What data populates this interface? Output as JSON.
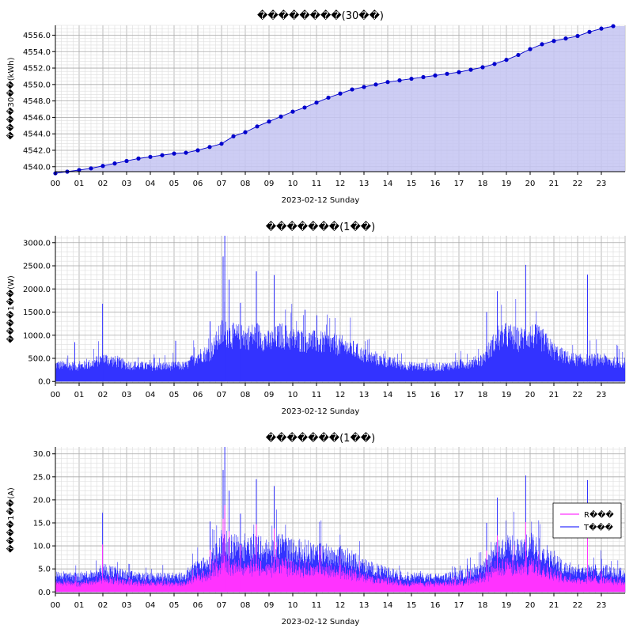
{
  "charts": [
    {
      "chart_data": {
        "type": "area",
        "title": "��������(30��)",
        "xlabel": "2023-02-12 Sunday",
        "ylabel": "����30��(kWh)",
        "ylim": [
          4539.4,
          4557.2
        ],
        "yticks": [
          4540.0,
          4542.0,
          4544.0,
          4546.0,
          4548.0,
          4550.0,
          4552.0,
          4554.0,
          4556.0
        ],
        "xlim": [
          0,
          24
        ],
        "xticks": [
          "00",
          "01",
          "02",
          "03",
          "04",
          "05",
          "06",
          "07",
          "08",
          "09",
          "10",
          "11",
          "12",
          "13",
          "14",
          "15",
          "16",
          "17",
          "18",
          "19",
          "20",
          "21",
          "22",
          "23"
        ],
        "grid": true,
        "colors": {
          "line": "#0000cc",
          "fill": "#c4c4f2",
          "marker": "#0000cc"
        },
        "x": [
          0,
          0.5,
          1,
          1.5,
          2,
          2.5,
          3,
          3.5,
          4,
          4.5,
          5,
          5.5,
          6,
          6.5,
          7,
          7.5,
          8,
          8.5,
          9,
          9.5,
          10,
          10.5,
          11,
          11.5,
          12,
          12.5,
          13,
          13.5,
          14,
          14.5,
          15,
          15.5,
          16,
          16.5,
          17,
          17.5,
          18,
          18.5,
          19,
          19.5,
          20,
          20.5,
          21,
          21.5,
          22,
          22.5,
          23,
          23.5
        ],
        "values": [
          4539.2,
          4539.4,
          4539.6,
          4539.8,
          4540.1,
          4540.4,
          4540.7,
          4541.0,
          4541.2,
          4541.4,
          4541.6,
          4541.7,
          4542.0,
          4542.4,
          4542.8,
          4543.7,
          4544.2,
          4544.9,
          4545.5,
          4546.1,
          4546.7,
          4547.2,
          4547.8,
          4548.4,
          4548.9,
          4549.4,
          4549.7,
          4550.0,
          4550.3,
          4550.5,
          4550.7,
          4550.9,
          4551.1,
          4551.3,
          4551.5,
          4551.8,
          4552.1,
          4552.5,
          4553.0,
          4553.6,
          4554.3,
          4554.9,
          4555.3,
          4555.6,
          4555.9,
          4556.4,
          4556.8,
          4557.1
        ]
      }
    },
    {
      "chart_data": {
        "type": "bar",
        "title": "�������(1��)",
        "xlabel": "2023-02-12 Sunday",
        "ylabel": "����1��(W)",
        "ylim": [
          -30,
          3150
        ],
        "yticks": [
          0.0,
          500.0,
          1000.0,
          1500.0,
          2000.0,
          2500.0,
          3000.0
        ],
        "xlim": [
          0,
          24
        ],
        "xticks": [
          "00",
          "01",
          "02",
          "03",
          "04",
          "05",
          "06",
          "07",
          "08",
          "09",
          "10",
          "11",
          "12",
          "13",
          "14",
          "15",
          "16",
          "17",
          "18",
          "19",
          "20",
          "21",
          "22",
          "23"
        ],
        "grid": true,
        "colors": {
          "bar": "#3333ff"
        },
        "profile_hours": [
          0,
          0.5,
          1,
          1.5,
          2,
          2.5,
          3,
          3.5,
          4,
          4.5,
          5,
          5.5,
          6,
          6.5,
          7,
          7.5,
          8,
          8.5,
          9,
          9.5,
          10,
          10.5,
          11,
          11.5,
          12,
          12.5,
          13,
          13.5,
          14,
          14.5,
          15,
          15.5,
          16,
          16.5,
          17,
          17.5,
          18,
          18.5,
          19,
          19.5,
          20,
          20.5,
          21,
          21.5,
          22,
          22.5,
          23,
          23.5,
          24
        ],
        "profile_values": [
          360,
          340,
          330,
          380,
          500,
          430,
          360,
          340,
          320,
          330,
          330,
          340,
          560,
          620,
          1050,
          980,
          950,
          1000,
          850,
          1000,
          900,
          880,
          850,
          820,
          780,
          700,
          560,
          480,
          420,
          360,
          330,
          320,
          310,
          330,
          370,
          400,
          480,
          850,
          1000,
          900,
          1000,
          900,
          650,
          520,
          460,
          460,
          480,
          420,
          400
        ],
        "spikes": [
          {
            "x": 7.05,
            "v": 2700
          },
          {
            "x": 7.12,
            "v": 3150
          },
          {
            "x": 7.3,
            "v": 2200
          },
          {
            "x": 8.45,
            "v": 2380
          },
          {
            "x": 9.2,
            "v": 2300
          },
          {
            "x": 7.78,
            "v": 1700
          },
          {
            "x": 1.97,
            "v": 1680
          },
          {
            "x": 18.6,
            "v": 1950
          },
          {
            "x": 19.8,
            "v": 2520
          },
          {
            "x": 22.4,
            "v": 2310
          },
          {
            "x": 0.8,
            "v": 850
          },
          {
            "x": 5.05,
            "v": 880
          },
          {
            "x": 6.5,
            "v": 1300
          },
          {
            "x": 18.15,
            "v": 1500
          },
          {
            "x": 11.0,
            "v": 1430
          },
          {
            "x": 10.5,
            "v": 1550
          }
        ]
      }
    },
    {
      "chart_data": {
        "type": "bar",
        "title": "�������(1��)",
        "xlabel": "2023-02-12 Sunday",
        "ylabel": "����1��(A)",
        "ylim": [
          -0.3,
          31.5
        ],
        "yticks": [
          0.0,
          5.0,
          10.0,
          15.0,
          20.0,
          25.0,
          30.0
        ],
        "xlim": [
          0,
          24
        ],
        "xticks": [
          "00",
          "01",
          "02",
          "03",
          "04",
          "05",
          "06",
          "07",
          "08",
          "09",
          "10",
          "11",
          "12",
          "13",
          "14",
          "15",
          "16",
          "17",
          "18",
          "19",
          "20",
          "21",
          "22",
          "23"
        ],
        "grid": true,
        "legend": "right",
        "colors": {
          "T": "#3333ff",
          "R": "#ff33ff"
        },
        "series": [
          {
            "name": "R���",
            "scale": 0.55
          },
          {
            "name": "T���",
            "scale": 1.0
          }
        ],
        "profile_hours": [
          0,
          0.5,
          1,
          1.5,
          2,
          2.5,
          3,
          3.5,
          4,
          4.5,
          5,
          5.5,
          6,
          6.5,
          7,
          7.5,
          8,
          8.5,
          9,
          9.5,
          10,
          10.5,
          11,
          11.5,
          12,
          12.5,
          13,
          13.5,
          14,
          14.5,
          15,
          15.5,
          16,
          16.5,
          17,
          17.5,
          18,
          18.5,
          19,
          19.5,
          20,
          20.5,
          21,
          21.5,
          22,
          22.5,
          23,
          23.5,
          24
        ],
        "profile_values": [
          3.6,
          3.4,
          3.3,
          3.8,
          5.0,
          4.3,
          3.6,
          3.4,
          3.2,
          3.3,
          3.3,
          3.4,
          5.6,
          6.2,
          10.5,
          9.8,
          9.5,
          10.0,
          8.5,
          10.0,
          9.0,
          8.8,
          8.5,
          8.2,
          7.8,
          7.0,
          5.6,
          4.8,
          4.2,
          3.6,
          3.3,
          3.2,
          3.1,
          3.3,
          3.7,
          4.0,
          4.8,
          8.5,
          10.0,
          9.0,
          10.0,
          9.0,
          6.5,
          5.2,
          4.6,
          4.6,
          4.8,
          4.2,
          4.0
        ],
        "spikes": [
          {
            "x": 7.05,
            "v": 26.5
          },
          {
            "x": 7.12,
            "v": 31.5
          },
          {
            "x": 7.3,
            "v": 22.0
          },
          {
            "x": 8.45,
            "v": 24.5
          },
          {
            "x": 9.2,
            "v": 23.0
          },
          {
            "x": 7.78,
            "v": 17.0
          },
          {
            "x": 1.97,
            "v": 17.2
          },
          {
            "x": 18.6,
            "v": 20.5
          },
          {
            "x": 19.8,
            "v": 25.3
          },
          {
            "x": 22.4,
            "v": 24.3
          },
          {
            "x": 6.5,
            "v": 15.3
          },
          {
            "x": 18.15,
            "v": 15.0
          }
        ]
      }
    }
  ]
}
